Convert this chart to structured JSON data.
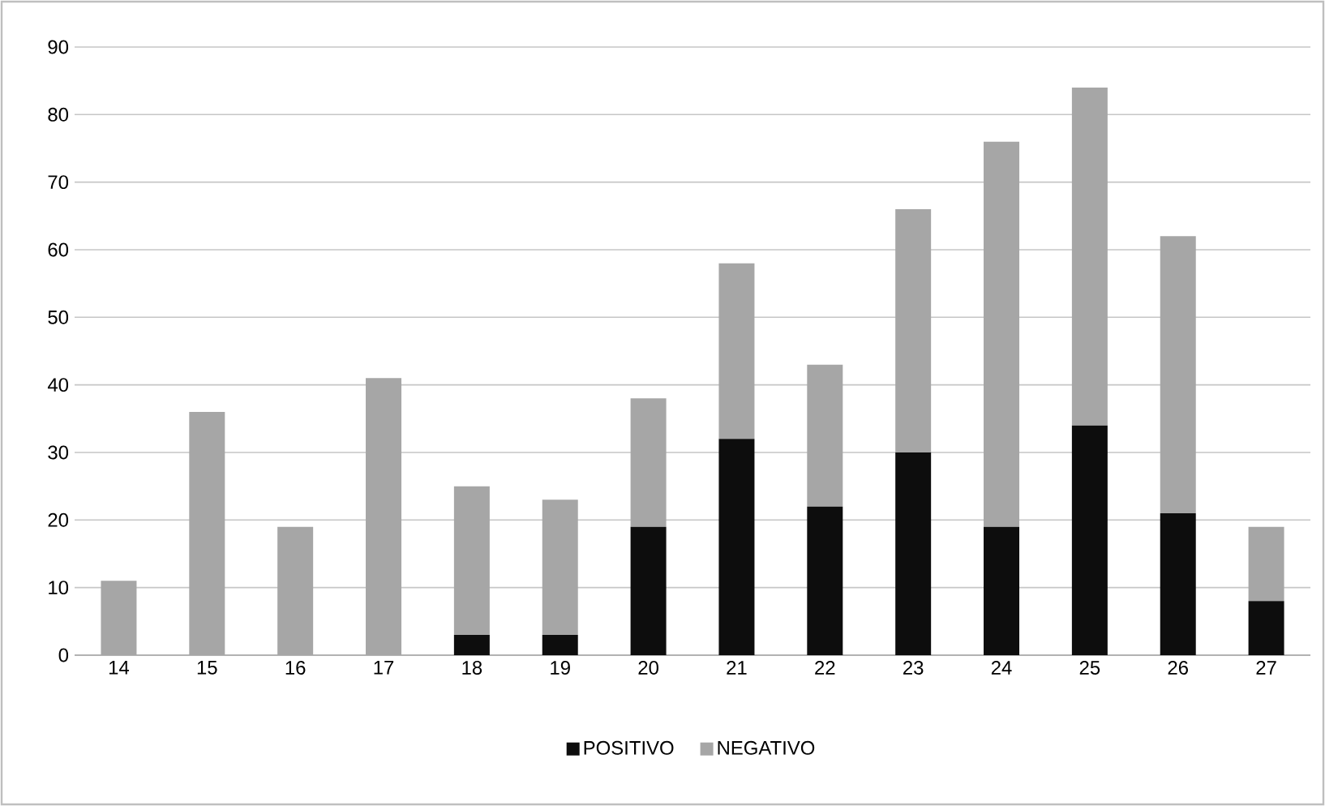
{
  "chart_data": {
    "type": "bar",
    "stacked": true,
    "categories": [
      "14",
      "15",
      "16",
      "17",
      "18",
      "19",
      "20",
      "21",
      "22",
      "23",
      "24",
      "25",
      "26",
      "27"
    ],
    "series": [
      {
        "name": "POSITIVO",
        "color": "#0d0d0d",
        "values": [
          0,
          0,
          0,
          0,
          3,
          3,
          19,
          32,
          22,
          30,
          19,
          34,
          21,
          8
        ]
      },
      {
        "name": "NEGATIVO",
        "color": "#a6a6a6",
        "values": [
          11,
          36,
          19,
          41,
          22,
          20,
          19,
          26,
          21,
          36,
          57,
          50,
          41,
          11
        ]
      }
    ],
    "ylim": [
      0,
      90
    ],
    "yticks": [
      0,
      10,
      20,
      30,
      40,
      50,
      60,
      70,
      80,
      90
    ],
    "grid": "y",
    "legend": "bottom"
  }
}
